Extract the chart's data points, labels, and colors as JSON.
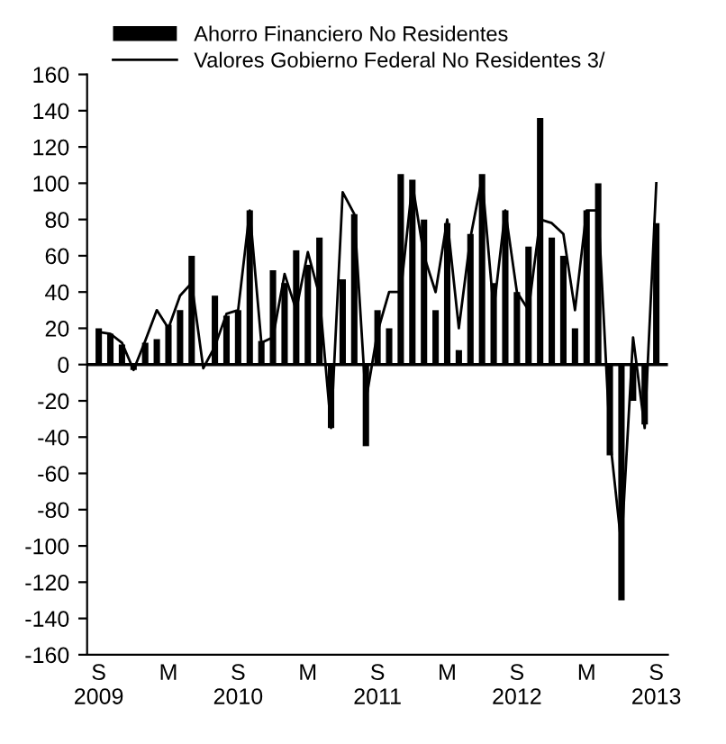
{
  "chart_data": {
    "type": "bar",
    "categories": [
      "S\n2009",
      null,
      null,
      null,
      null,
      null,
      "M",
      null,
      null,
      null,
      null,
      null,
      "S\n2010",
      null,
      null,
      null,
      null,
      null,
      "M",
      null,
      null,
      null,
      null,
      null,
      "S\n2011",
      null,
      null,
      null,
      null,
      null,
      "M",
      null,
      null,
      null,
      null,
      null,
      "S\n2012",
      null,
      null,
      null,
      null,
      null,
      "M",
      null,
      null,
      null,
      null,
      null,
      "S\n2013"
    ],
    "series": [
      {
        "name": "Ahorro Financiero No Residentes",
        "color": "#000000",
        "values": [
          20,
          17,
          11,
          -3,
          12,
          14,
          22,
          30,
          60,
          null,
          38,
          27,
          30,
          85,
          13,
          52,
          45,
          63,
          55,
          70,
          -35,
          47,
          83,
          -45,
          30,
          20,
          105,
          102,
          80,
          30,
          78,
          8,
          72,
          105,
          45,
          85,
          40,
          65,
          136,
          70,
          60,
          20,
          85,
          100,
          -50,
          -130,
          -20,
          -33,
          78
        ]
      },
      {
        "name": "Valores Gobierno Federal No Residentes 3/",
        "type": "line",
        "color": "#000000",
        "values": [
          18,
          17,
          12,
          -3,
          13,
          30,
          20,
          38,
          45,
          -2,
          10,
          28,
          30,
          85,
          12,
          15,
          50,
          30,
          62,
          38,
          -35,
          95,
          83,
          -20,
          18,
          40,
          40,
          100,
          60,
          40,
          80,
          20,
          70,
          103,
          30,
          85,
          40,
          30,
          80,
          78,
          72,
          30,
          85,
          85,
          -40,
          -100,
          15,
          -35,
          100
        ]
      }
    ],
    "ylim": [
      -160,
      160
    ],
    "yticks": [
      -160,
      -140,
      -120,
      -100,
      -80,
      -60,
      -40,
      -20,
      0,
      20,
      40,
      60,
      80,
      100,
      120,
      140,
      160
    ],
    "legend": "top left",
    "ref_lines": [
      {
        "axis": "y",
        "value": 0,
        "color": "#000000"
      }
    ],
    "grid": false
  }
}
